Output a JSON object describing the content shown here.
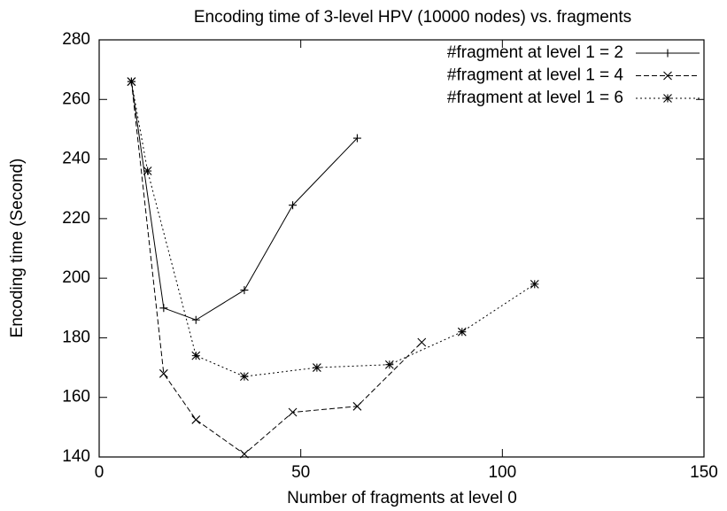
{
  "chart_data": {
    "type": "line",
    "title": "Encoding time of 3-level HPV (10000 nodes) vs. fragments",
    "x_label": "Number of fragments at level 0",
    "y_label": "Encoding time (Second)",
    "xlim": [
      0,
      150
    ],
    "xticks": [
      0,
      50,
      100,
      150
    ],
    "ylim": [
      140,
      280
    ],
    "yticks": [
      140,
      160,
      180,
      200,
      220,
      240,
      260,
      280
    ],
    "grid": false,
    "legend": "top-right",
    "series": [
      {
        "name": "#fragment at level 1 = 2",
        "color": "#000000",
        "marker": "+",
        "line_style": "solid",
        "x": [
          8,
          16,
          24,
          36,
          48,
          64
        ],
        "values": [
          266,
          190,
          186,
          196,
          224.5,
          247
        ]
      },
      {
        "name": "#fragment at level 1 = 4",
        "color": "#000000",
        "marker": "x",
        "line_style": "dashed",
        "x": [
          8,
          16,
          24,
          36,
          48,
          64,
          80
        ],
        "values": [
          266,
          168,
          152.5,
          141,
          155,
          157,
          178.5
        ]
      },
      {
        "name": "#fragment at level 1 = 6",
        "color": "#000000",
        "marker": "*",
        "line_style": "dotted",
        "x": [
          8,
          12,
          24,
          36,
          54,
          72,
          90,
          108
        ],
        "values": [
          266,
          236,
          174,
          167,
          170,
          171,
          182,
          198
        ]
      }
    ]
  }
}
